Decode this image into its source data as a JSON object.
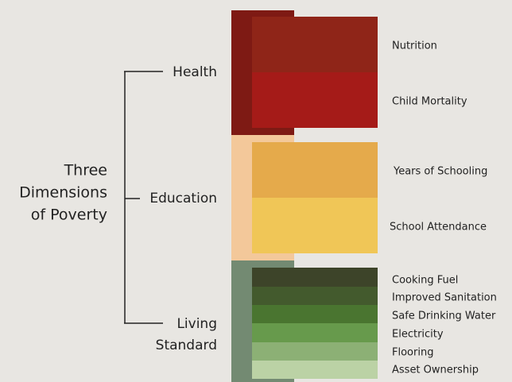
{
  "title": [
    "Three",
    "Dimensions",
    "of Poverty"
  ],
  "dimensions": [
    {
      "label": [
        "Health"
      ],
      "indicators": [
        "Nutrition",
        "Child Mortality"
      ]
    },
    {
      "label": [
        "Education"
      ],
      "indicators": [
        "Years of Schooling",
        "School Attendance"
      ]
    },
    {
      "label": [
        "Living",
        "Standard"
      ],
      "indicators": [
        "Cooking Fuel",
        "Improved Sanitation",
        "Safe Drinking Water",
        "Electricity",
        "Flooring",
        "Asset Ownership"
      ]
    }
  ]
}
